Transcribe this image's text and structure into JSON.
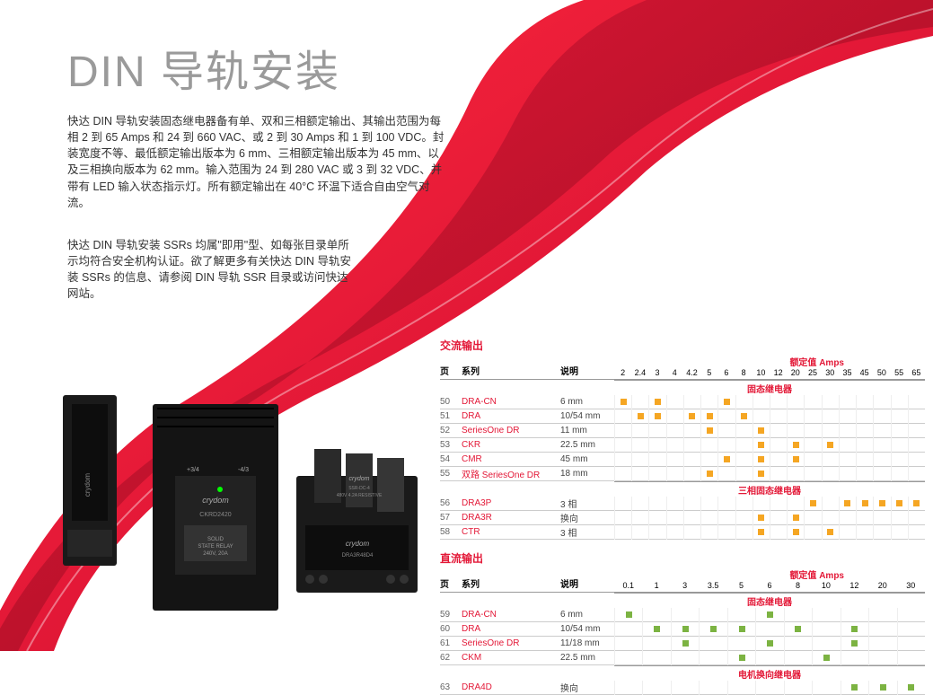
{
  "title": "DIN 导轨安装",
  "para1": "快达 DIN 导轨安装固态继电器备有单、双和三相额定输出、其输出范围为每相 2 到 65 Amps 和 24 到 660 VAC、或 2 到 30 Amps 和 1 到 100 VDC。封装宽度不等、最低额定输出版本为 6 mm、三相额定输出版本为 45 mm、以及三相换向版本为 62 mm。输入范围为 24 到 280 VAC 或 3 到 32 VDC、并带有 LED 输入状态指示灯。所有额定输出在 40°C 环温下适合自由空气对流。",
  "para2": "快达 DIN 导轨安装 SSRs 均属\"即用\"型、如每张目录单所示均符合安全机构认证。欲了解更多有关快达 DIN 导轨安装 SSRs 的信息、请参阅 DIN 导轨 SSR 目录或访问快达网站。",
  "swoosh": {
    "outer_color": "#e31837",
    "inner_color": "#c40f2e",
    "highlight": "#ff3050"
  },
  "ac": {
    "section_title": "交流输出",
    "headers": {
      "page": "页",
      "series": "系列",
      "desc": "说明",
      "amps_label": "额定值 Amps"
    },
    "amp_cols": [
      "2",
      "2.4",
      "3",
      "4",
      "4.2",
      "5",
      "6",
      "8",
      "10",
      "12",
      "20",
      "25",
      "30",
      "35",
      "45",
      "50",
      "55",
      "65"
    ],
    "cat1": "固态继电器",
    "rows1": [
      {
        "page": "50",
        "series": "DRA-CN",
        "desc": "6 mm",
        "dots": [
          1,
          0,
          1,
          0,
          0,
          0,
          1,
          0,
          0,
          0,
          0,
          0,
          0,
          0,
          0,
          0,
          0,
          0
        ]
      },
      {
        "page": "51",
        "series": "DRA",
        "desc": "10/54 mm",
        "dots": [
          0,
          1,
          1,
          0,
          1,
          1,
          0,
          1,
          0,
          0,
          0,
          0,
          0,
          0,
          0,
          0,
          0,
          0
        ]
      },
      {
        "page": "52",
        "series": "SeriesOne DR",
        "desc": "11 mm",
        "dots": [
          0,
          0,
          0,
          0,
          0,
          1,
          0,
          0,
          1,
          0,
          0,
          0,
          0,
          0,
          0,
          0,
          0,
          0
        ]
      },
      {
        "page": "53",
        "series": "CKR",
        "desc": "22.5 mm",
        "dots": [
          0,
          0,
          0,
          0,
          0,
          0,
          0,
          0,
          1,
          0,
          1,
          0,
          1,
          0,
          0,
          0,
          0,
          0
        ]
      },
      {
        "page": "54",
        "series": "CMR",
        "desc": "45 mm",
        "dots": [
          0,
          0,
          0,
          0,
          0,
          0,
          1,
          0,
          1,
          0,
          1,
          0,
          0,
          0,
          0,
          0,
          0,
          0
        ]
      },
      {
        "page": "55",
        "series": "双路 SeriesOne DR",
        "desc": "18 mm",
        "dots": [
          0,
          0,
          0,
          0,
          0,
          1,
          0,
          0,
          1,
          0,
          0,
          0,
          0,
          0,
          0,
          0,
          0,
          0
        ]
      }
    ],
    "cat2": "三相固态继电器",
    "rows2": [
      {
        "page": "56",
        "series": "DRA3P",
        "desc": "3 相",
        "dots": [
          0,
          0,
          0,
          0,
          0,
          0,
          0,
          0,
          0,
          0,
          0,
          1,
          0,
          1,
          1,
          1,
          1,
          1
        ]
      },
      {
        "page": "57",
        "series": "DRA3R",
        "desc": "换向",
        "dots": [
          0,
          0,
          0,
          0,
          0,
          0,
          0,
          0,
          1,
          0,
          1,
          0,
          0,
          0,
          0,
          0,
          0,
          0
        ]
      },
      {
        "page": "58",
        "series": "CTR",
        "desc": "3 相",
        "dots": [
          0,
          0,
          0,
          0,
          0,
          0,
          0,
          0,
          1,
          0,
          1,
          0,
          1,
          0,
          0,
          0,
          0,
          0
        ]
      }
    ]
  },
  "dc": {
    "section_title": "直流输出",
    "headers": {
      "page": "页",
      "series": "系列",
      "desc": "说明",
      "amps_label": "额定值 Amps"
    },
    "amp_cols": [
      "0.1",
      "1",
      "3",
      "3.5",
      "5",
      "6",
      "8",
      "10",
      "12",
      "20",
      "30"
    ],
    "cat1": "固态继电器",
    "rows1": [
      {
        "page": "59",
        "series": "DRA-CN",
        "desc": "6 mm",
        "dots": [
          1,
          0,
          0,
          0,
          0,
          1,
          0,
          0,
          0,
          0,
          0
        ]
      },
      {
        "page": "60",
        "series": "DRA",
        "desc": "10/54 mm",
        "dots": [
          0,
          1,
          1,
          1,
          1,
          0,
          1,
          0,
          1,
          0,
          0
        ]
      },
      {
        "page": "61",
        "series": "SeriesOne DR",
        "desc": "11/18 mm",
        "dots": [
          0,
          0,
          1,
          0,
          0,
          1,
          0,
          0,
          1,
          0,
          0
        ]
      },
      {
        "page": "62",
        "series": "CKM",
        "desc": "22.5 mm",
        "dots": [
          0,
          0,
          0,
          0,
          1,
          0,
          0,
          1,
          0,
          0,
          0
        ]
      }
    ],
    "cat2": "电机换向继电器",
    "rows2": [
      {
        "page": "63",
        "series": "DRA4D",
        "desc": "换向",
        "dots": [
          0,
          0,
          0,
          0,
          0,
          0,
          0,
          0,
          1,
          1,
          1
        ]
      }
    ]
  },
  "colors": {
    "brand_red": "#e31837",
    "ac_dot": "#f5a623",
    "dc_dot": "#7cb342",
    "grey_text": "#9a9a9a",
    "border": "#cccccc"
  }
}
